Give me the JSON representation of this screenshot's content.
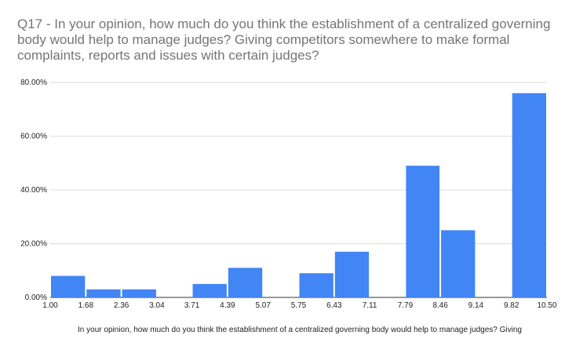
{
  "chart_data": {
    "type": "bar",
    "title": "Q17 - In your opinion, how much do you think the establishment of a centralized governing body would help to manage judges? Giving competitors somewhere to make formal complaints, reports and issues with certain judges?",
    "xlabel": "In your opinion, how much do you think the establishment of a centralized governing body would help to manage judges? Giving",
    "ylabel": "",
    "x_ticks": [
      "1.00",
      "1.68",
      "2.36",
      "3.04",
      "3.71",
      "4.39",
      "5.07",
      "5.75",
      "6.43",
      "7.11",
      "7.79",
      "8.46",
      "9.14",
      "9.82",
      "10.50"
    ],
    "y_ticks": [
      "0.00%",
      "20.00%",
      "40.00%",
      "60.00%",
      "80.00%"
    ],
    "ylim": [
      0,
      80
    ],
    "bins": [
      {
        "from": 1.0,
        "to": 1.68,
        "value": 8
      },
      {
        "from": 1.68,
        "to": 2.36,
        "value": 3
      },
      {
        "from": 2.36,
        "to": 3.04,
        "value": 3
      },
      {
        "from": 3.04,
        "to": 3.71,
        "value": 0
      },
      {
        "from": 3.71,
        "to": 4.39,
        "value": 5
      },
      {
        "from": 4.39,
        "to": 5.07,
        "value": 11
      },
      {
        "from": 5.07,
        "to": 5.75,
        "value": 0
      },
      {
        "from": 5.75,
        "to": 6.43,
        "value": 9
      },
      {
        "from": 6.43,
        "to": 7.11,
        "value": 17
      },
      {
        "from": 7.11,
        "to": 7.79,
        "value": 0
      },
      {
        "from": 7.79,
        "to": 8.46,
        "value": 49
      },
      {
        "from": 8.46,
        "to": 9.14,
        "value": 25
      },
      {
        "from": 9.14,
        "to": 9.82,
        "value": 0
      },
      {
        "from": 9.82,
        "to": 10.5,
        "value": 76
      }
    ],
    "bar_color": "#4285f4",
    "grid": true,
    "legend": "none"
  }
}
